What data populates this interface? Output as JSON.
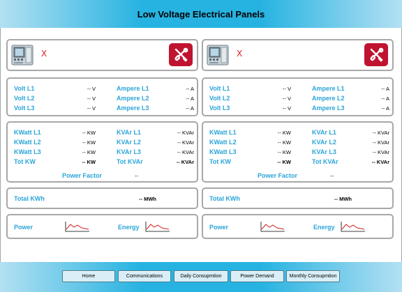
{
  "header": {
    "title": "Low Voltage Electrical Panels"
  },
  "panels": [
    {
      "status": "X",
      "voltage": [
        {
          "volt_label": "Volt L1",
          "volt_value": "-- V",
          "amp_label": "Ampere L1",
          "amp_value": "-- A"
        },
        {
          "volt_label": "Volt L2",
          "volt_value": "-- V",
          "amp_label": "Ampere L2",
          "amp_value": "-- A"
        },
        {
          "volt_label": "Volt L3",
          "volt_value": "-- V",
          "amp_label": "Ampere L3",
          "amp_value": "-- A"
        }
      ],
      "power": [
        {
          "kw_label": "KWatt L1",
          "kw_value": "-- KW",
          "kvar_label": "KVAr L1",
          "kvar_value": "-- KVAr"
        },
        {
          "kw_label": "KWatt L2",
          "kw_value": "-- KW",
          "kvar_label": "KVAr L2",
          "kvar_value": "-- KVAr"
        },
        {
          "kw_label": "KWatt L3",
          "kw_value": "-- KW",
          "kvar_label": "KVAr L3",
          "kvar_value": "-- KVAr"
        }
      ],
      "tot_kw_label": "Tot KW",
      "tot_kw_value": "-- KW",
      "tot_kvar_label": "Tot KVAr",
      "tot_kvar_value": "-- KVAr",
      "pf_label": "Power Factor",
      "pf_value": "--",
      "total_kwh_label": "Total KWh",
      "total_kwh_value": "-- MWh",
      "power_label": "Power",
      "energy_label": "Energy"
    },
    {
      "status": "X",
      "voltage": [
        {
          "volt_label": "Volt L1",
          "volt_value": "-- V",
          "amp_label": "Ampere L1",
          "amp_value": "-- A"
        },
        {
          "volt_label": "Volt L2",
          "volt_value": "-- V",
          "amp_label": "Ampere L2",
          "amp_value": "-- A"
        },
        {
          "volt_label": "Volt L3",
          "volt_value": "-- V",
          "amp_label": "Ampere L3",
          "amp_value": "-- A"
        }
      ],
      "power": [
        {
          "kw_label": "KWatt L1",
          "kw_value": "-- KW",
          "kvar_label": "KVAr L1",
          "kvar_value": "-- KVAr"
        },
        {
          "kw_label": "KWatt L2",
          "kw_value": "-- KW",
          "kvar_label": "KVAr L2",
          "kvar_value": "-- KVAr"
        },
        {
          "kw_label": "KWatt L3",
          "kw_value": "-- KW",
          "kvar_label": "KVAr L3",
          "kvar_value": "-- KVAr"
        }
      ],
      "tot_kw_label": "Tot KW",
      "tot_kw_value": "-- KW",
      "tot_kvar_label": "Tot KVAr",
      "tot_kvar_value": "-- KVAr",
      "pf_label": "Power Factor",
      "pf_value": "--",
      "total_kwh_label": "Total KWh",
      "total_kwh_value": "-- MWh",
      "power_label": "Power",
      "energy_label": "Energy"
    }
  ],
  "footer": {
    "buttons": [
      "Home",
      "Communications",
      "Daily Consupmtion",
      "Power Demand",
      "Monthly Consupmtion"
    ]
  },
  "icons": {
    "device": "power-meter-icon",
    "tools": "tools-icon",
    "trend": "trend-chart-icon"
  },
  "colors": {
    "accent": "#27b3e1",
    "label": "#2aa5d8",
    "tools_bg": "#c0132f",
    "status": "#e02020"
  }
}
